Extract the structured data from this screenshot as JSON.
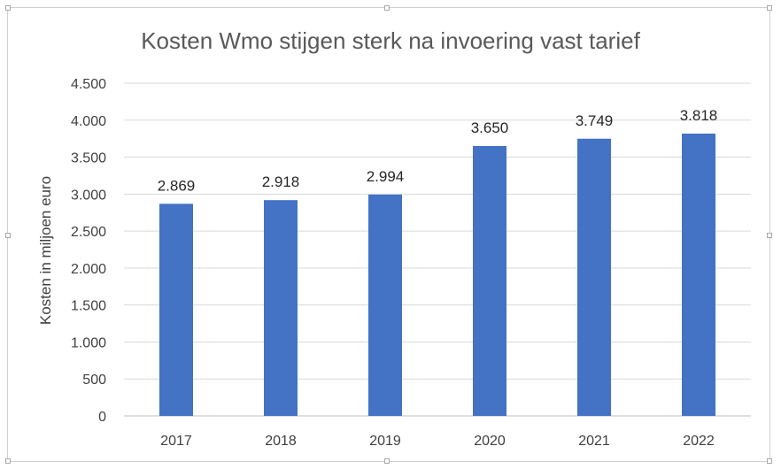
{
  "chart_data": {
    "type": "bar",
    "title": "Kosten Wmo stijgen sterk na invoering vast tarief",
    "xlabel": "",
    "ylabel": "Kosten in miljoen euro",
    "categories": [
      "2017",
      "2018",
      "2019",
      "2020",
      "2021",
      "2022"
    ],
    "values": [
      2869,
      2918,
      2994,
      3650,
      3749,
      3818
    ],
    "data_labels": [
      "2.869",
      "2.918",
      "2.994",
      "3.650",
      "3.749",
      "3.818"
    ],
    "ylim": [
      0,
      4500
    ],
    "yticks": [
      0,
      500,
      1000,
      1500,
      2000,
      2500,
      3000,
      3500,
      4000,
      4500
    ],
    "ytick_labels": [
      "0",
      "500",
      "1.000",
      "1.500",
      "2.000",
      "2.500",
      "3.000",
      "3.500",
      "4.000",
      "4.500"
    ],
    "grid": true,
    "legend": "none",
    "bar_color": "#4472C4",
    "grid_color": "#d9d9d9"
  }
}
